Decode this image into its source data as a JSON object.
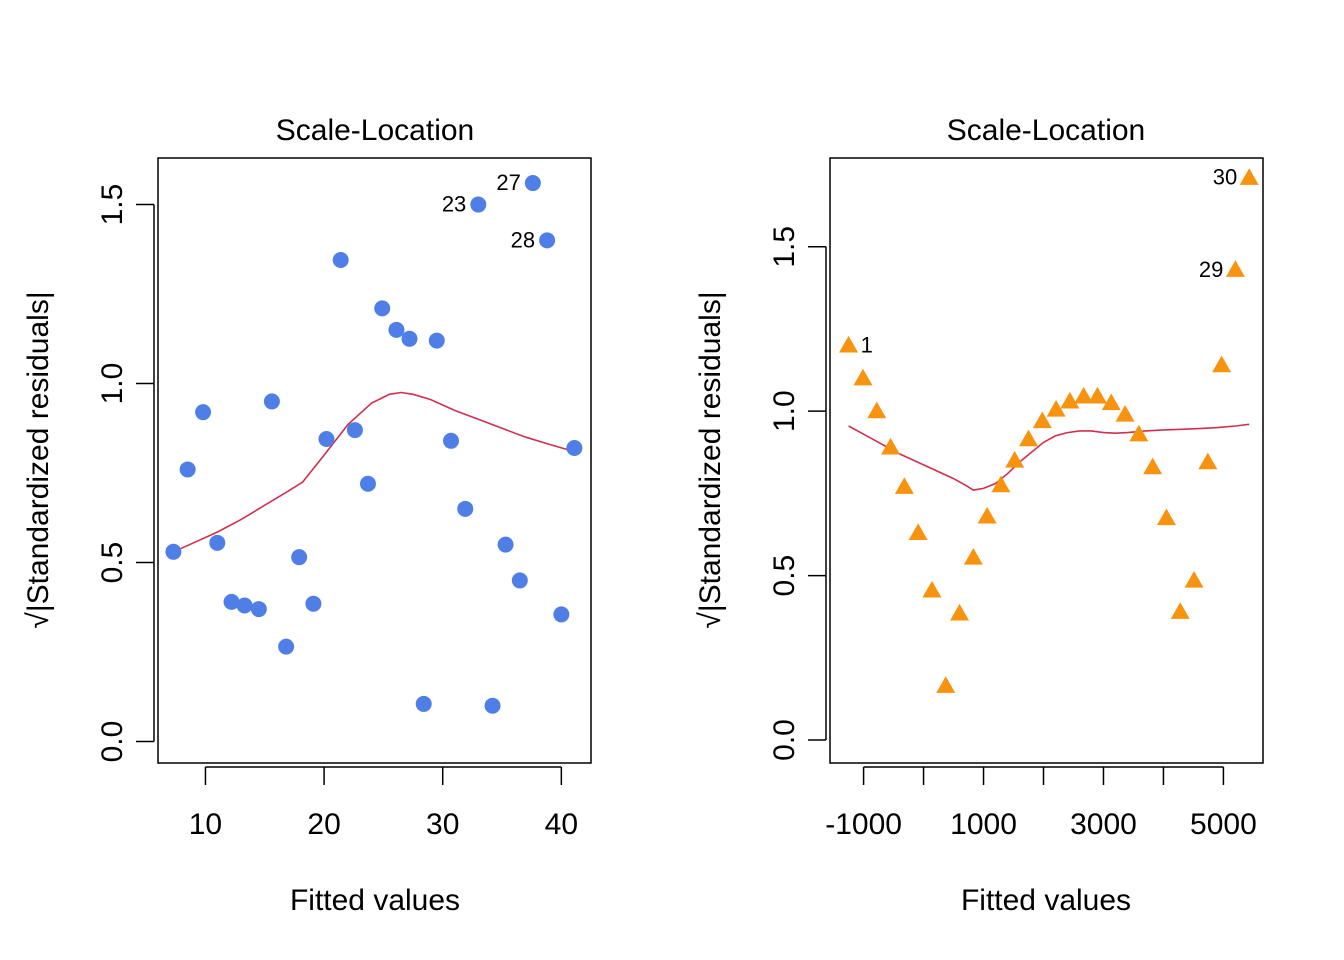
{
  "colors": {
    "left_points": "#4F7FE6",
    "right_points": "#F7930F",
    "smooth": "#D0304F"
  },
  "chart_data": [
    {
      "type": "scatter",
      "title": "Scale-Location",
      "xlabel": "Fitted values",
      "ylabel": "√|Standardized residuals|",
      "xlim": [
        6,
        42.5
      ],
      "ylim": [
        -0.06,
        1.63
      ],
      "xticks": [
        10,
        20,
        30,
        40
      ],
      "yticks": [
        "0.0",
        "0.5",
        "1.0",
        "1.5"
      ],
      "marker": "circle",
      "points": [
        {
          "x": 7.3,
          "y": 0.53
        },
        {
          "x": 8.5,
          "y": 0.76
        },
        {
          "x": 9.8,
          "y": 0.92
        },
        {
          "x": 11.0,
          "y": 0.555
        },
        {
          "x": 12.2,
          "y": 0.39
        },
        {
          "x": 13.3,
          "y": 0.38
        },
        {
          "x": 14.5,
          "y": 0.37
        },
        {
          "x": 15.6,
          "y": 0.95
        },
        {
          "x": 16.8,
          "y": 0.265
        },
        {
          "x": 17.9,
          "y": 0.515
        },
        {
          "x": 19.1,
          "y": 0.385
        },
        {
          "x": 20.2,
          "y": 0.845
        },
        {
          "x": 21.4,
          "y": 1.345
        },
        {
          "x": 22.6,
          "y": 0.87
        },
        {
          "x": 23.7,
          "y": 0.72
        },
        {
          "x": 24.9,
          "y": 1.21
        },
        {
          "x": 26.1,
          "y": 1.15
        },
        {
          "x": 27.2,
          "y": 1.125
        },
        {
          "x": 28.4,
          "y": 0.105
        },
        {
          "x": 29.5,
          "y": 1.12
        },
        {
          "x": 30.7,
          "y": 0.84
        },
        {
          "x": 31.9,
          "y": 0.65
        },
        {
          "x": 33.0,
          "y": 1.5,
          "label": "23"
        },
        {
          "x": 34.2,
          "y": 0.1
        },
        {
          "x": 35.3,
          "y": 0.55
        },
        {
          "x": 36.5,
          "y": 0.45
        },
        {
          "x": 37.6,
          "y": 1.56,
          "label": "27"
        },
        {
          "x": 38.8,
          "y": 1.4,
          "label": "28"
        },
        {
          "x": 40.0,
          "y": 0.355
        },
        {
          "x": 41.1,
          "y": 0.82
        }
      ],
      "smooth": {
        "x": [
          7.3,
          9,
          11,
          13,
          15,
          17,
          18.2,
          20,
          22,
          24,
          25.5,
          26.5,
          27.5,
          29,
          31,
          33,
          35,
          37,
          39,
          41.1
        ],
        "y": [
          0.53,
          0.555,
          0.585,
          0.62,
          0.66,
          0.7,
          0.725,
          0.8,
          0.885,
          0.945,
          0.97,
          0.975,
          0.97,
          0.955,
          0.925,
          0.9,
          0.875,
          0.85,
          0.83,
          0.81
        ]
      }
    },
    {
      "type": "scatter",
      "title": "Scale-Location",
      "xlabel": "Fitted values",
      "ylabel": "√|Standardized residuals|",
      "xlim": [
        -1560,
        5660
      ],
      "ylim": [
        -0.07,
        1.77
      ],
      "xticks": [
        -1000,
        0,
        1000,
        2000,
        3000,
        4000,
        5000
      ],
      "xtick_labels": [
        "-1000",
        "",
        "1000",
        "",
        "3000",
        "",
        "5000"
      ],
      "yticks": [
        "0.0",
        "0.5",
        "1.0",
        "1.5"
      ],
      "marker": "triangle",
      "points": [
        {
          "x": -1250,
          "y": 1.2,
          "label": "1"
        },
        {
          "x": -1010,
          "y": 1.1
        },
        {
          "x": -780,
          "y": 1.0
        },
        {
          "x": -550,
          "y": 0.89
        },
        {
          "x": -320,
          "y": 0.77
        },
        {
          "x": -90,
          "y": 0.63
        },
        {
          "x": 140,
          "y": 0.455
        },
        {
          "x": 370,
          "y": 0.165
        },
        {
          "x": 600,
          "y": 0.385
        },
        {
          "x": 830,
          "y": 0.555
        },
        {
          "x": 1060,
          "y": 0.68
        },
        {
          "x": 1290,
          "y": 0.775
        },
        {
          "x": 1520,
          "y": 0.85
        },
        {
          "x": 1750,
          "y": 0.915
        },
        {
          "x": 1980,
          "y": 0.97
        },
        {
          "x": 2210,
          "y": 1.005
        },
        {
          "x": 2440,
          "y": 1.03
        },
        {
          "x": 2670,
          "y": 1.045
        },
        {
          "x": 2900,
          "y": 1.045
        },
        {
          "x": 3130,
          "y": 1.025
        },
        {
          "x": 3360,
          "y": 0.99
        },
        {
          "x": 3590,
          "y": 0.93
        },
        {
          "x": 3820,
          "y": 0.83
        },
        {
          "x": 4050,
          "y": 0.675
        },
        {
          "x": 4280,
          "y": 0.39
        },
        {
          "x": 4510,
          "y": 0.485
        },
        {
          "x": 4740,
          "y": 0.845
        },
        {
          "x": 4970,
          "y": 1.14
        },
        {
          "x": 5200,
          "y": 1.43,
          "label": "29"
        },
        {
          "x": 5430,
          "y": 1.71,
          "label": "30"
        }
      ],
      "smooth": {
        "x": [
          -1250,
          -1000,
          -700,
          -400,
          -100,
          200,
          500,
          700,
          830,
          1000,
          1200,
          1400,
          1600,
          1800,
          2000,
          2200,
          2400,
          2600,
          2800,
          3000,
          3200,
          3400,
          3700,
          4000,
          4300,
          4600,
          4900,
          5200,
          5430
        ],
        "y": [
          0.955,
          0.93,
          0.9,
          0.87,
          0.845,
          0.82,
          0.795,
          0.775,
          0.76,
          0.765,
          0.78,
          0.81,
          0.845,
          0.875,
          0.905,
          0.925,
          0.935,
          0.94,
          0.94,
          0.935,
          0.933,
          0.935,
          0.94,
          0.943,
          0.945,
          0.947,
          0.95,
          0.955,
          0.96
        ]
      }
    }
  ]
}
